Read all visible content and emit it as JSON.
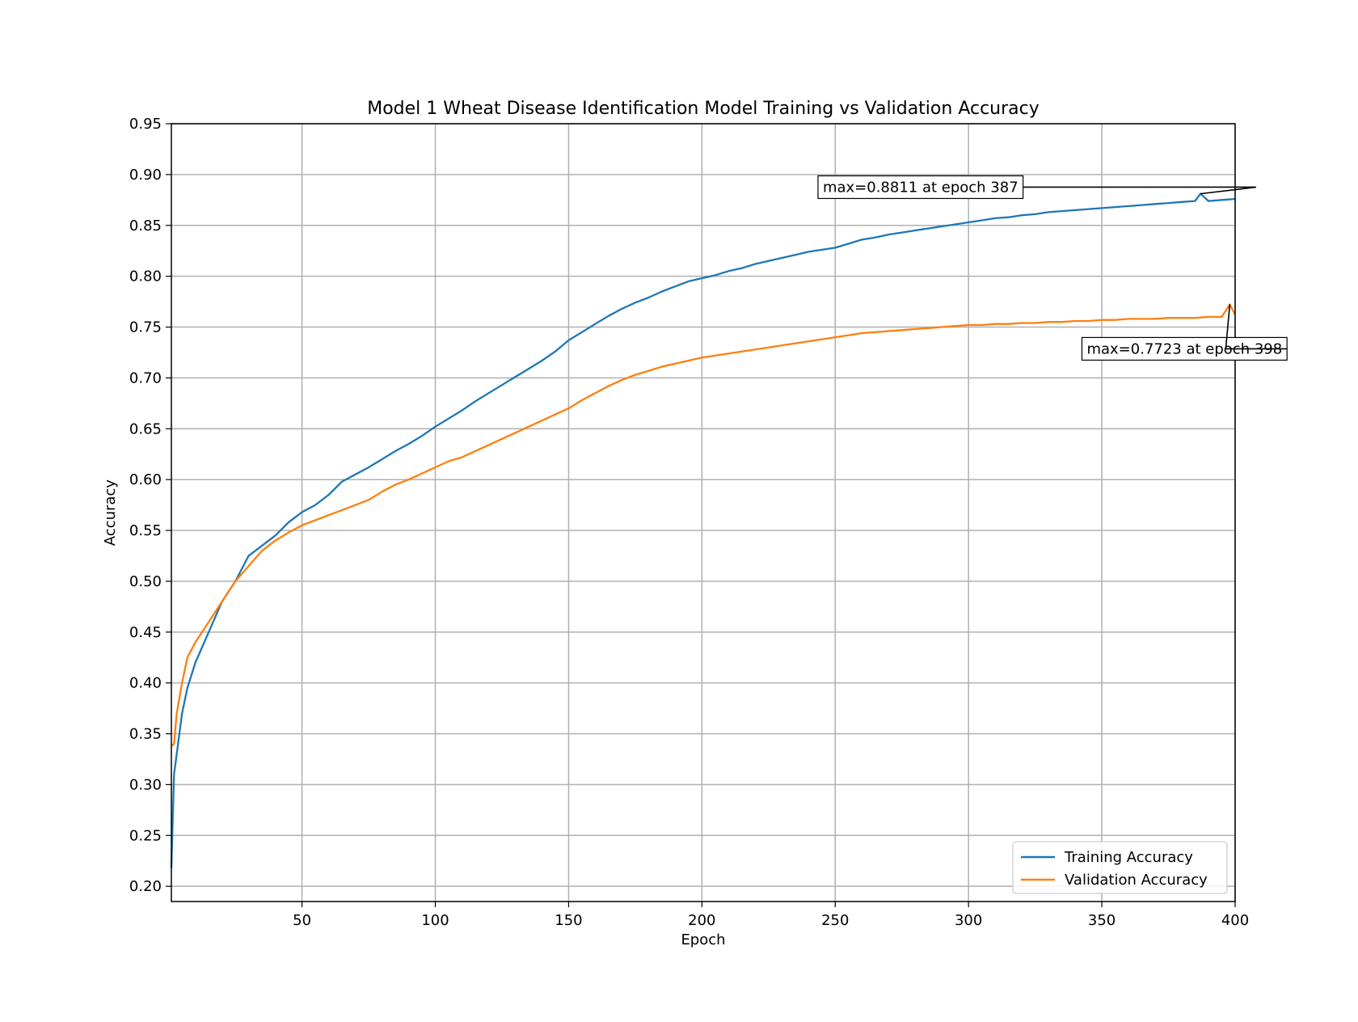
{
  "chart_data": {
    "type": "line",
    "title": "Model 1 Wheat Disease Identification Model Training vs Validation Accuracy",
    "xlabel": "Epoch",
    "ylabel": "Accuracy",
    "xlim": [
      1,
      400
    ],
    "ylim": [
      0.185,
      0.95
    ],
    "x_ticks": [
      50,
      100,
      150,
      200,
      250,
      300,
      350,
      400
    ],
    "y_ticks": [
      0.2,
      0.25,
      0.3,
      0.35,
      0.4,
      0.45,
      0.5,
      0.55,
      0.6,
      0.65,
      0.7,
      0.75,
      0.8,
      0.85,
      0.9,
      0.95
    ],
    "grid": true,
    "legend_position": "lower right",
    "series": [
      {
        "name": "Training Accuracy",
        "color": "#1f77b4",
        "points": [
          [
            1,
            0.218
          ],
          [
            2,
            0.31
          ],
          [
            3,
            0.33
          ],
          [
            5,
            0.37
          ],
          [
            7,
            0.395
          ],
          [
            10,
            0.42
          ],
          [
            15,
            0.45
          ],
          [
            20,
            0.48
          ],
          [
            25,
            0.5
          ],
          [
            30,
            0.525
          ],
          [
            35,
            0.535
          ],
          [
            40,
            0.545
          ],
          [
            45,
            0.558
          ],
          [
            50,
            0.568
          ],
          [
            55,
            0.575
          ],
          [
            60,
            0.585
          ],
          [
            65,
            0.598
          ],
          [
            70,
            0.605
          ],
          [
            75,
            0.612
          ],
          [
            80,
            0.62
          ],
          [
            85,
            0.628
          ],
          [
            90,
            0.635
          ],
          [
            95,
            0.643
          ],
          [
            100,
            0.652
          ],
          [
            105,
            0.66
          ],
          [
            110,
            0.668
          ],
          [
            115,
            0.677
          ],
          [
            120,
            0.685
          ],
          [
            125,
            0.693
          ],
          [
            130,
            0.701
          ],
          [
            135,
            0.709
          ],
          [
            140,
            0.717
          ],
          [
            145,
            0.726
          ],
          [
            150,
            0.737
          ],
          [
            155,
            0.745
          ],
          [
            160,
            0.753
          ],
          [
            165,
            0.761
          ],
          [
            170,
            0.768
          ],
          [
            175,
            0.774
          ],
          [
            180,
            0.779
          ],
          [
            185,
            0.785
          ],
          [
            190,
            0.79
          ],
          [
            195,
            0.795
          ],
          [
            200,
            0.798
          ],
          [
            205,
            0.801
          ],
          [
            210,
            0.805
          ],
          [
            215,
            0.808
          ],
          [
            220,
            0.812
          ],
          [
            225,
            0.815
          ],
          [
            230,
            0.818
          ],
          [
            235,
            0.821
          ],
          [
            240,
            0.824
          ],
          [
            245,
            0.826
          ],
          [
            250,
            0.828
          ],
          [
            255,
            0.832
          ],
          [
            260,
            0.836
          ],
          [
            265,
            0.838
          ],
          [
            270,
            0.841
          ],
          [
            275,
            0.843
          ],
          [
            280,
            0.845
          ],
          [
            285,
            0.847
          ],
          [
            290,
            0.849
          ],
          [
            295,
            0.851
          ],
          [
            300,
            0.853
          ],
          [
            305,
            0.855
          ],
          [
            310,
            0.857
          ],
          [
            315,
            0.858
          ],
          [
            320,
            0.86
          ],
          [
            325,
            0.861
          ],
          [
            330,
            0.863
          ],
          [
            335,
            0.864
          ],
          [
            340,
            0.865
          ],
          [
            345,
            0.866
          ],
          [
            350,
            0.867
          ],
          [
            355,
            0.868
          ],
          [
            360,
            0.869
          ],
          [
            365,
            0.87
          ],
          [
            370,
            0.871
          ],
          [
            375,
            0.872
          ],
          [
            380,
            0.873
          ],
          [
            385,
            0.874
          ],
          [
            387,
            0.8811
          ],
          [
            390,
            0.874
          ],
          [
            395,
            0.875
          ],
          [
            400,
            0.876
          ]
        ]
      },
      {
        "name": "Validation Accuracy",
        "color": "#ff7f0e",
        "points": [
          [
            1,
            0.338
          ],
          [
            2,
            0.34
          ],
          [
            3,
            0.37
          ],
          [
            5,
            0.4
          ],
          [
            7,
            0.425
          ],
          [
            10,
            0.44
          ],
          [
            15,
            0.46
          ],
          [
            20,
            0.48
          ],
          [
            25,
            0.5
          ],
          [
            30,
            0.515
          ],
          [
            35,
            0.53
          ],
          [
            40,
            0.54
          ],
          [
            45,
            0.548
          ],
          [
            50,
            0.555
          ],
          [
            55,
            0.56
          ],
          [
            60,
            0.565
          ],
          [
            65,
            0.57
          ],
          [
            70,
            0.575
          ],
          [
            75,
            0.58
          ],
          [
            80,
            0.588
          ],
          [
            85,
            0.595
          ],
          [
            90,
            0.6
          ],
          [
            95,
            0.606
          ],
          [
            100,
            0.612
          ],
          [
            105,
            0.618
          ],
          [
            110,
            0.622
          ],
          [
            115,
            0.628
          ],
          [
            120,
            0.634
          ],
          [
            125,
            0.64
          ],
          [
            130,
            0.646
          ],
          [
            135,
            0.652
          ],
          [
            140,
            0.658
          ],
          [
            145,
            0.664
          ],
          [
            150,
            0.67
          ],
          [
            155,
            0.678
          ],
          [
            160,
            0.685
          ],
          [
            165,
            0.692
          ],
          [
            170,
            0.698
          ],
          [
            175,
            0.703
          ],
          [
            180,
            0.707
          ],
          [
            185,
            0.711
          ],
          [
            190,
            0.714
          ],
          [
            195,
            0.717
          ],
          [
            200,
            0.72
          ],
          [
            205,
            0.722
          ],
          [
            210,
            0.724
          ],
          [
            215,
            0.726
          ],
          [
            220,
            0.728
          ],
          [
            225,
            0.73
          ],
          [
            230,
            0.732
          ],
          [
            235,
            0.734
          ],
          [
            240,
            0.736
          ],
          [
            245,
            0.738
          ],
          [
            250,
            0.74
          ],
          [
            255,
            0.742
          ],
          [
            260,
            0.744
          ],
          [
            265,
            0.745
          ],
          [
            270,
            0.746
          ],
          [
            275,
            0.747
          ],
          [
            280,
            0.748
          ],
          [
            285,
            0.749
          ],
          [
            290,
            0.75
          ],
          [
            295,
            0.751
          ],
          [
            300,
            0.752
          ],
          [
            305,
            0.752
          ],
          [
            310,
            0.753
          ],
          [
            315,
            0.753
          ],
          [
            320,
            0.754
          ],
          [
            325,
            0.754
          ],
          [
            330,
            0.755
          ],
          [
            335,
            0.755
          ],
          [
            340,
            0.756
          ],
          [
            345,
            0.756
          ],
          [
            350,
            0.757
          ],
          [
            355,
            0.757
          ],
          [
            360,
            0.758
          ],
          [
            365,
            0.758
          ],
          [
            370,
            0.758
          ],
          [
            375,
            0.759
          ],
          [
            380,
            0.759
          ],
          [
            385,
            0.759
          ],
          [
            390,
            0.76
          ],
          [
            395,
            0.76
          ],
          [
            398,
            0.7723
          ],
          [
            400,
            0.762
          ]
        ]
      }
    ],
    "annotations": [
      {
        "text": "max=0.8811 at epoch 387",
        "series": 0,
        "x": 387,
        "y": 0.8811,
        "text_x": 282,
        "text_y": 0.8876
      },
      {
        "text": "max=0.7723 at epoch 398",
        "series": 1,
        "x": 398,
        "y": 0.7723,
        "text_x": 381,
        "text_y": 0.7286
      }
    ]
  }
}
